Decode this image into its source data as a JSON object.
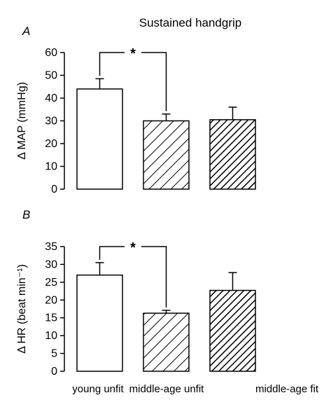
{
  "title": "Sustained handgrip",
  "categories": [
    "young unfit",
    "middle-age unfit",
    "middle-age fit"
  ],
  "chart_data": [
    {
      "type": "bar",
      "panel_label": "A",
      "ylabel": "Δ MAP (mmHg)",
      "ylim": [
        0,
        60
      ],
      "yticks": [
        "0",
        "10",
        "20",
        "30",
        "40",
        "50",
        "60"
      ],
      "categories": [
        "young unfit",
        "middle-age unfit",
        "middle-age fit"
      ],
      "values": [
        44,
        30,
        30.5
      ],
      "errors": [
        4.5,
        3,
        5.5
      ],
      "fills": [
        "open",
        "light-hatch",
        "dense-hatch"
      ],
      "significance": {
        "from": 0,
        "to": 1,
        "label": "*"
      }
    },
    {
      "type": "bar",
      "panel_label": "B",
      "ylabel": "Δ HR (beat min⁻¹)",
      "ylim": [
        0,
        35
      ],
      "yticks": [
        "0",
        "5",
        "10",
        "15",
        "20",
        "25",
        "30",
        "35"
      ],
      "categories": [
        "young unfit",
        "middle-age unfit",
        "middle-age fit"
      ],
      "values": [
        27,
        16.3,
        22.7
      ],
      "errors": [
        3.5,
        0.8,
        5
      ],
      "fills": [
        "open",
        "light-hatch",
        "dense-hatch"
      ],
      "significance": {
        "from": 0,
        "to": 1,
        "label": "*"
      }
    }
  ]
}
